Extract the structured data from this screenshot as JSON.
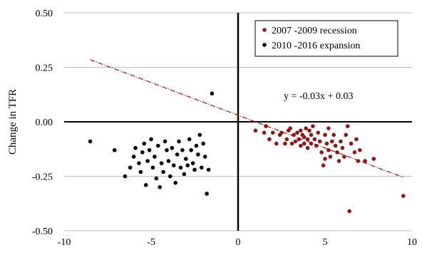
{
  "chart_data": {
    "type": "scatter",
    "title": "",
    "xlabel": "",
    "ylabel": "Change in TFR",
    "xlim": [
      -10,
      10
    ],
    "ylim": [
      -0.5,
      0.5
    ],
    "x_ticks": [
      -10,
      -5,
      0,
      5,
      10
    ],
    "y_ticks": [
      0.5,
      0.25,
      0.0,
      -0.25,
      -0.5
    ],
    "x_tick_labels": [
      "-10",
      "-5",
      "0",
      "5",
      "10"
    ],
    "y_tick_labels": [
      "0.50",
      "0.25",
      "0.00",
      "-0.25",
      "-0.50"
    ],
    "grid": "horizontal",
    "legend_position": "top-right",
    "equation": "y = -0.03x + 0.03",
    "trendline": {
      "slope": -0.03,
      "intercept": 0.03,
      "x_range": [
        -8.5,
        9.5
      ],
      "color": "#8b1a1a"
    },
    "series": [
      {
        "name": "2007 -2009 recession",
        "color": "#8b1a1a",
        "points": [
          [
            1.0,
            -0.04
          ],
          [
            1.5,
            -0.05
          ],
          [
            1.6,
            -0.02
          ],
          [
            1.8,
            -0.08
          ],
          [
            2.0,
            -0.05
          ],
          [
            2.2,
            -0.1
          ],
          [
            2.4,
            -0.06
          ],
          [
            2.5,
            -0.05
          ],
          [
            2.7,
            -0.1
          ],
          [
            2.8,
            -0.08
          ],
          [
            2.9,
            -0.04
          ],
          [
            3.0,
            -0.03
          ],
          [
            3.1,
            -0.1
          ],
          [
            3.2,
            -0.06
          ],
          [
            3.3,
            -0.09
          ],
          [
            3.4,
            -0.05
          ],
          [
            3.5,
            -0.08
          ],
          [
            3.6,
            -0.04
          ],
          [
            3.6,
            -0.11
          ],
          [
            3.7,
            -0.06
          ],
          [
            3.8,
            -0.1
          ],
          [
            3.8,
            -0.07
          ],
          [
            3.9,
            -0.03
          ],
          [
            4.0,
            -0.08
          ],
          [
            4.0,
            -0.12
          ],
          [
            4.1,
            -0.04
          ],
          [
            4.2,
            -0.1
          ],
          [
            4.2,
            -0.06
          ],
          [
            4.3,
            -0.02
          ],
          [
            4.4,
            -0.08
          ],
          [
            4.5,
            -0.11
          ],
          [
            4.6,
            -0.05
          ],
          [
            4.7,
            -0.09
          ],
          [
            4.8,
            -0.14
          ],
          [
            4.9,
            -0.2
          ],
          [
            5.0,
            -0.06
          ],
          [
            5.0,
            -0.17
          ],
          [
            5.1,
            -0.1
          ],
          [
            5.2,
            -0.03
          ],
          [
            5.2,
            -0.13
          ],
          [
            5.3,
            -0.16
          ],
          [
            5.4,
            -0.09
          ],
          [
            5.5,
            -0.06
          ],
          [
            5.6,
            -0.11
          ],
          [
            5.7,
            -0.14
          ],
          [
            5.8,
            -0.18
          ],
          [
            5.9,
            -0.09
          ],
          [
            6.0,
            -0.12
          ],
          [
            6.1,
            -0.16
          ],
          [
            6.2,
            -0.06
          ],
          [
            6.3,
            -0.02
          ],
          [
            6.4,
            -0.41
          ],
          [
            6.5,
            -0.1
          ],
          [
            6.7,
            -0.14
          ],
          [
            6.8,
            -0.08
          ],
          [
            6.9,
            -0.18
          ],
          [
            7.0,
            -0.13
          ],
          [
            7.3,
            -0.18
          ],
          [
            7.8,
            -0.17
          ],
          [
            9.5,
            -0.34
          ]
        ]
      },
      {
        "name": "2010 -2016 expansion",
        "color": "#000000",
        "points": [
          [
            -8.5,
            -0.09
          ],
          [
            -7.1,
            -0.13
          ],
          [
            -6.5,
            -0.25
          ],
          [
            -6.2,
            -0.21
          ],
          [
            -6.0,
            -0.16
          ],
          [
            -5.9,
            -0.12
          ],
          [
            -5.7,
            -0.19
          ],
          [
            -5.6,
            -0.23
          ],
          [
            -5.5,
            -0.14
          ],
          [
            -5.4,
            -0.1
          ],
          [
            -5.3,
            -0.29
          ],
          [
            -5.2,
            -0.18
          ],
          [
            -5.1,
            -0.13
          ],
          [
            -5.0,
            -0.08
          ],
          [
            -4.9,
            -0.21
          ],
          [
            -4.8,
            -0.16
          ],
          [
            -4.7,
            -0.26
          ],
          [
            -4.6,
            -0.11
          ],
          [
            -4.5,
            -0.3
          ],
          [
            -4.4,
            -0.19
          ],
          [
            -4.3,
            -0.23
          ],
          [
            -4.2,
            -0.09
          ],
          [
            -4.1,
            -0.13
          ],
          [
            -4.0,
            -0.18
          ],
          [
            -3.9,
            -0.25
          ],
          [
            -3.8,
            -0.12
          ],
          [
            -3.7,
            -0.2
          ],
          [
            -3.6,
            -0.28
          ],
          [
            -3.5,
            -0.15
          ],
          [
            -3.4,
            -0.09
          ],
          [
            -3.3,
            -0.21
          ],
          [
            -3.2,
            -0.13
          ],
          [
            -3.1,
            -0.24
          ],
          [
            -3.0,
            -0.17
          ],
          [
            -2.9,
            -0.2
          ],
          [
            -2.8,
            -0.08
          ],
          [
            -2.7,
            -0.13
          ],
          [
            -2.6,
            -0.19
          ],
          [
            -2.5,
            -0.22
          ],
          [
            -2.4,
            -0.11
          ],
          [
            -2.3,
            -0.15
          ],
          [
            -2.2,
            -0.06
          ],
          [
            -2.1,
            -0.21
          ],
          [
            -2.0,
            -0.1
          ],
          [
            -1.9,
            -0.16
          ],
          [
            -1.8,
            -0.33
          ],
          [
            -1.7,
            -0.22
          ],
          [
            -1.5,
            0.13
          ]
        ]
      }
    ]
  }
}
